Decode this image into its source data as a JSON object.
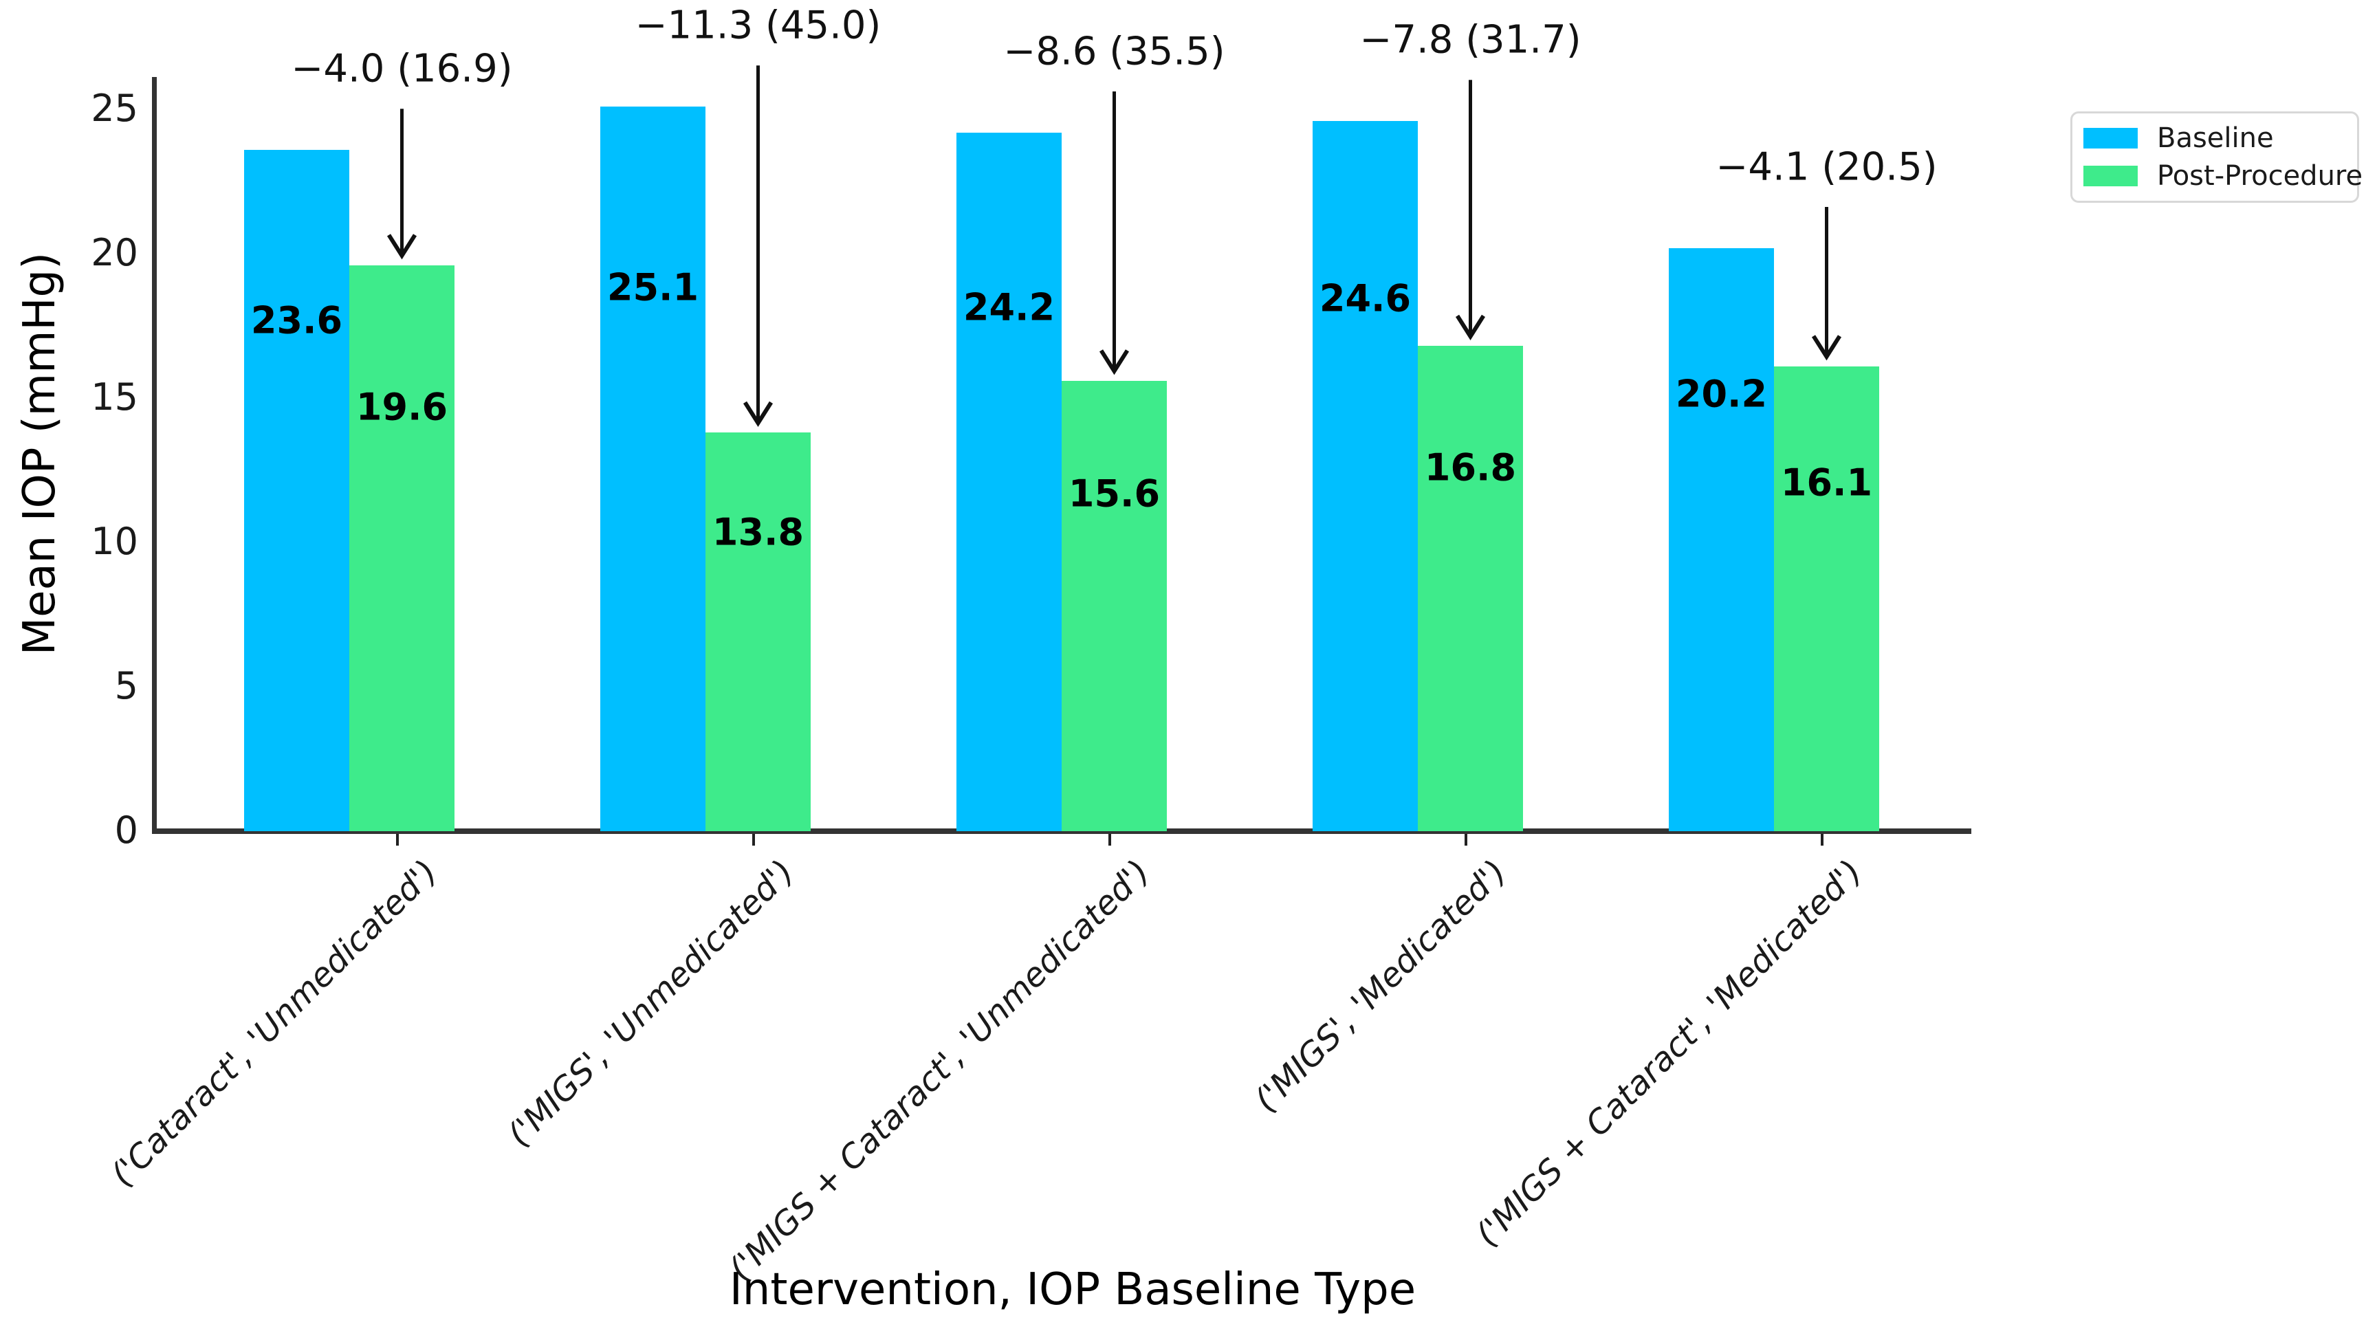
{
  "figure": {
    "background": "#ffffff",
    "text_color": "#1a1a1a",
    "spine_color": "#333333"
  },
  "chart_data": {
    "type": "bar",
    "title": "",
    "xlabel": "Intervention, IOP Baseline Type",
    "ylabel": "Mean IOP (mmHg)",
    "categories": [
      "('Cataract', 'Unmedicated')",
      "('MIGS', 'Unmedicated')",
      "('MIGS + Cataract', 'Unmedicated')",
      "('MIGS', 'Medicated')",
      "('MIGS + Cataract', 'Medicated')"
    ],
    "series": [
      {
        "name": "Baseline",
        "color": "#00bfff",
        "values": [
          23.6,
          25.1,
          24.2,
          24.6,
          20.2
        ]
      },
      {
        "name": "Post-Procedure",
        "color": "#3eeb8b",
        "values": [
          19.6,
          13.8,
          15.6,
          16.8,
          16.1
        ]
      }
    ],
    "annotations": [
      {
        "text": "−4.0 (16.9)",
        "delta": -4.0,
        "percent_reduction": 16.9
      },
      {
        "text": "−11.3 (45.0)",
        "delta": -11.3,
        "percent_reduction": 45.0
      },
      {
        "text": "−8.6 (35.5)",
        "delta": -8.6,
        "percent_reduction": 35.5
      },
      {
        "text": "−7.8 (31.7)",
        "delta": -7.8,
        "percent_reduction": 31.7
      },
      {
        "text": "−4.1 (20.5)",
        "delta": -4.1,
        "percent_reduction": 20.5
      }
    ],
    "yticks": [
      "0",
      "5",
      "10",
      "15",
      "20",
      "25"
    ],
    "ylim": [
      0,
      26.2
    ],
    "grid": false,
    "legend": {
      "position": "upper right",
      "entries": [
        "Baseline",
        "Post-Procedure"
      ]
    },
    "arrow_color": "#111111"
  }
}
